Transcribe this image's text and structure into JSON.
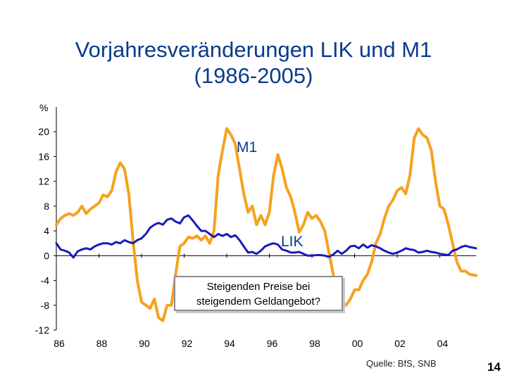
{
  "slide": {
    "title_line1": "Vorjahresveränderungen LIK und M1",
    "title_line2": "(1986-2005)",
    "callout_line1": "Steigenden Preise bei",
    "callout_line2": "steigendem Geldangebot?",
    "source": "Quelle: BfS, SNB",
    "page_number": "14"
  },
  "chart_data": {
    "type": "line",
    "title": "Vorjahresveränderungen LIK und M1 (1986-2005)",
    "ylabel": "%",
    "xlabel": "",
    "ylim": [
      -12,
      24
    ],
    "xlim": [
      1986.0,
      2005.7
    ],
    "y_ticks": [
      "20",
      "16",
      "12",
      "8",
      "4",
      "0",
      "-4",
      "-8",
      "-12"
    ],
    "y_tick_values": [
      20,
      16,
      12,
      8,
      4,
      0,
      -4,
      -8,
      -12
    ],
    "x_ticks": [
      "86",
      "88",
      "90",
      "92",
      "94",
      "96",
      "98",
      "00",
      "02",
      "04"
    ],
    "x_tick_values": [
      1986,
      1988,
      1990,
      1992,
      1994,
      1996,
      1998,
      2000,
      2002,
      2004
    ],
    "grid": false,
    "colors": {
      "M1": "#f5a21f",
      "LIK": "#1a1aba"
    },
    "series": [
      {
        "name": "M1",
        "label": "M1",
        "x": [
          1986.0,
          1986.2,
          1986.4,
          1986.6,
          1986.8,
          1987.0,
          1987.2,
          1987.4,
          1987.6,
          1987.8,
          1988.0,
          1988.2,
          1988.4,
          1988.6,
          1988.8,
          1989.0,
          1989.2,
          1989.4,
          1989.6,
          1989.8,
          1990.0,
          1990.2,
          1990.4,
          1990.6,
          1990.8,
          1991.0,
          1991.2,
          1991.4,
          1991.6,
          1991.8,
          1992.0,
          1992.2,
          1992.4,
          1992.6,
          1992.8,
          1993.0,
          1993.2,
          1993.4,
          1993.6,
          1993.8,
          1994.0,
          1994.2,
          1994.4,
          1994.6,
          1994.8,
          1995.0,
          1995.2,
          1995.4,
          1995.6,
          1995.8,
          1996.0,
          1996.2,
          1996.4,
          1996.6,
          1996.8,
          1997.0,
          1997.2,
          1997.4,
          1997.6,
          1997.8,
          1998.0,
          1998.2,
          1998.4,
          1998.6,
          1998.8,
          1999.0,
          1999.2,
          1999.4,
          1999.6,
          1999.8,
          2000.0,
          2000.2,
          2000.4,
          2000.6,
          2000.8,
          2001.0,
          2001.2,
          2001.4,
          2001.6,
          2001.8,
          2002.0,
          2002.2,
          2002.4,
          2002.6,
          2002.8,
          2003.0,
          2003.2,
          2003.4,
          2003.6,
          2003.8,
          2004.0,
          2004.2,
          2004.4,
          2004.6,
          2004.8,
          2005.0,
          2005.2,
          2005.4,
          2005.7
        ],
        "values": [
          5.0,
          6.0,
          6.5,
          6.8,
          6.5,
          7.0,
          8.0,
          6.8,
          7.5,
          8.0,
          8.5,
          9.8,
          9.5,
          10.5,
          13.5,
          15.0,
          14.0,
          10.0,
          2.5,
          -4.0,
          -7.5,
          -8.0,
          -8.5,
          -7.0,
          -10.0,
          -10.5,
          -8.0,
          -8.0,
          -3.0,
          1.5,
          2.0,
          3.0,
          2.8,
          3.2,
          2.5,
          3.2,
          2.0,
          4.0,
          13.0,
          17.0,
          20.5,
          19.5,
          18.0,
          14.0,
          10.0,
          7.0,
          8.0,
          5.0,
          6.5,
          5.0,
          7.0,
          13.0,
          16.3,
          14.0,
          11.0,
          9.5,
          7.0,
          3.8,
          5.0,
          7.0,
          6.0,
          6.5,
          5.5,
          4.0,
          0.5,
          -3.0,
          -6.0,
          -7.5,
          -8.0,
          -7.0,
          -5.5,
          -5.5,
          -4.0,
          -3.0,
          -1.0,
          2.0,
          3.5,
          6.0,
          8.0,
          9.0,
          10.5,
          11.0,
          10.0,
          13.0,
          19.0,
          20.5,
          19.5,
          19.0,
          17.0,
          12.0,
          8.0,
          7.5,
          5.0,
          2.0,
          -1.0,
          -2.5,
          -2.5,
          -3.0,
          -3.2
        ]
      },
      {
        "name": "LIK",
        "label": "LIK",
        "x": [
          1986.0,
          1986.2,
          1986.4,
          1986.6,
          1986.8,
          1987.0,
          1987.2,
          1987.4,
          1987.6,
          1987.8,
          1988.0,
          1988.2,
          1988.4,
          1988.6,
          1988.8,
          1989.0,
          1989.2,
          1989.4,
          1989.6,
          1989.8,
          1990.0,
          1990.2,
          1990.4,
          1990.6,
          1990.8,
          1991.0,
          1991.2,
          1991.4,
          1991.6,
          1991.8,
          1992.0,
          1992.2,
          1992.4,
          1992.6,
          1992.8,
          1993.0,
          1993.2,
          1993.4,
          1993.6,
          1993.8,
          1994.0,
          1994.2,
          1994.4,
          1994.6,
          1994.8,
          1995.0,
          1995.2,
          1995.4,
          1995.6,
          1995.8,
          1996.0,
          1996.2,
          1996.4,
          1996.6,
          1996.8,
          1997.0,
          1997.2,
          1997.4,
          1997.6,
          1997.8,
          1998.0,
          1998.2,
          1998.4,
          1998.6,
          1998.8,
          1999.0,
          1999.2,
          1999.4,
          1999.6,
          1999.8,
          2000.0,
          2000.2,
          2000.4,
          2000.6,
          2000.8,
          2001.0,
          2001.2,
          2001.4,
          2001.6,
          2001.8,
          2002.0,
          2002.2,
          2002.4,
          2002.6,
          2002.8,
          2003.0,
          2003.2,
          2003.4,
          2003.6,
          2003.8,
          2004.0,
          2004.2,
          2004.4,
          2004.6,
          2004.8,
          2005.0,
          2005.2,
          2005.4,
          2005.7
        ],
        "values": [
          2.0,
          1.0,
          0.8,
          0.5,
          -0.3,
          0.7,
          1.0,
          1.2,
          1.0,
          1.5,
          1.8,
          2.0,
          2.0,
          1.8,
          2.2,
          2.0,
          2.5,
          2.2,
          2.0,
          2.5,
          2.8,
          3.5,
          4.5,
          5.0,
          5.3,
          5.0,
          5.8,
          6.0,
          5.5,
          5.2,
          6.2,
          6.5,
          5.7,
          4.8,
          4.0,
          4.0,
          3.5,
          3.0,
          3.5,
          3.2,
          3.5,
          3.0,
          3.3,
          2.5,
          1.5,
          0.5,
          0.6,
          0.3,
          0.8,
          1.5,
          1.8,
          2.0,
          1.8,
          1.0,
          0.8,
          0.5,
          0.5,
          0.6,
          0.3,
          0.0,
          0.0,
          0.1,
          0.1,
          0.0,
          -0.2,
          0.2,
          0.8,
          0.3,
          0.8,
          1.5,
          1.6,
          1.2,
          1.8,
          1.3,
          1.7,
          1.5,
          1.2,
          0.8,
          0.5,
          0.3,
          0.5,
          0.8,
          1.2,
          1.0,
          0.9,
          0.5,
          0.6,
          0.8,
          0.6,
          0.5,
          0.3,
          0.2,
          0.1,
          0.8,
          1.0,
          1.4,
          1.6,
          1.4,
          1.2
        ]
      }
    ]
  }
}
